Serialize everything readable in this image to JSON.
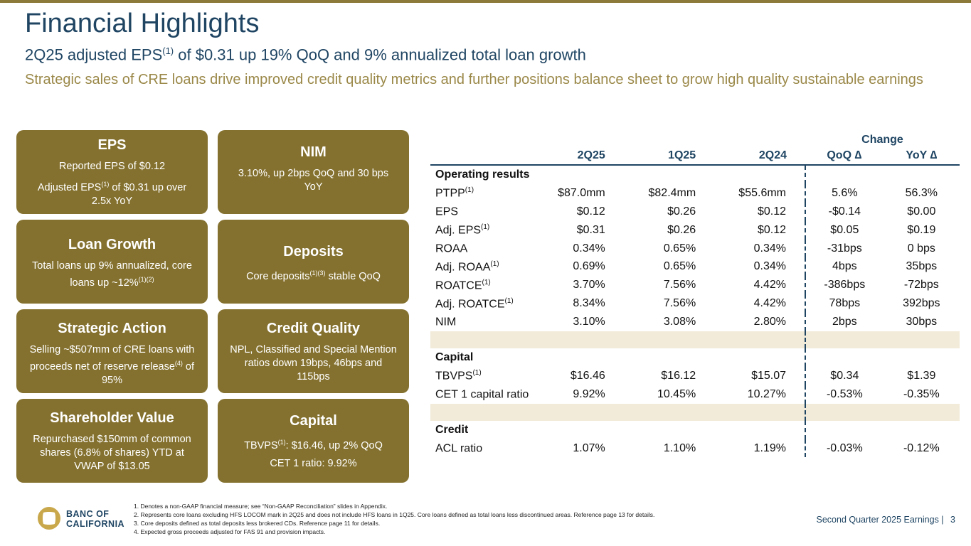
{
  "title": "Financial Highlights",
  "subtitle": {
    "text": "2Q25 adjusted EPS",
    "sup": "(1)",
    "text_after": " of $0.31 up 19% QoQ and 9% annualized total loan growth"
  },
  "subtitle2": "Strategic sales of CRE loans drive improved credit quality metrics and further positions balance sheet to grow high quality sustainable earnings",
  "tiles": {
    "eps": {
      "heading": "EPS",
      "line1": "Reported EPS of $0.12",
      "line2_a": "Adjusted EPS",
      "line2_sup": "(1)",
      "line2_b": " of $0.31 up over 2.5x YoY"
    },
    "nim": {
      "heading": "NIM",
      "line1": "3.10%, up 2bps QoQ and 30 bps YoY"
    },
    "loan_growth": {
      "heading": "Loan Growth",
      "line1": "Total loans up 9% annualized, core loans up ~12%",
      "line1_sup": "(1)(2)"
    },
    "deposits": {
      "heading": "Deposits",
      "line1_a": "Core deposits",
      "line1_sup": "(1)(3)",
      "line1_b": " stable QoQ"
    },
    "strategic_action": {
      "heading": "Strategic Action",
      "line1_a": "Selling ~$507mm of CRE loans with proceeds net of reserve release",
      "line1_sup": "(4)",
      "line1_b": " of 95%"
    },
    "credit_quality": {
      "heading": "Credit Quality",
      "line1": "NPL, Classified and Special Mention ratios down 19bps, 46bps and 115bps"
    },
    "shareholder_value": {
      "heading": "Shareholder Value",
      "line1": "Repurchased $150mm of common shares (6.8% of shares) YTD at VWAP of $13.05"
    },
    "capital": {
      "heading": "Capital",
      "line1_a": "TBVPS",
      "line1_sup": "(1)",
      "line1_b": ": $16.46, up 2% QoQ",
      "line2": "CET 1 ratio: 9.92%"
    }
  },
  "table": {
    "change_label": "Change",
    "columns": [
      "2Q25",
      "1Q25",
      "2Q24",
      "QoQ",
      "YoY"
    ],
    "delta_symbol": "∆",
    "sections": {
      "operating": "Operating results",
      "capital": "Capital",
      "credit": "Credit"
    },
    "rows": [
      {
        "label": "PTPP",
        "sup": "(1)",
        "values": [
          "$87.0mm",
          "$82.4mm",
          "$55.6mm",
          "5.6%",
          "56.3%"
        ]
      },
      {
        "label": "EPS",
        "sup": "",
        "values": [
          "$0.12",
          "$0.26",
          "$0.12",
          "-$0.14",
          "$0.00"
        ]
      },
      {
        "label": "Adj. EPS",
        "sup": "(1)",
        "values": [
          "$0.31",
          "$0.26",
          "$0.12",
          "$0.05",
          "$0.19"
        ]
      },
      {
        "label": "ROAA",
        "sup": "",
        "values": [
          "0.34%",
          "0.65%",
          "0.34%",
          "-31bps",
          "0 bps"
        ]
      },
      {
        "label": "Adj. ROAA",
        "sup": "(1)",
        "values": [
          "0.69%",
          "0.65%",
          "0.34%",
          "4bps",
          "35bps"
        ]
      },
      {
        "label": "ROATCE",
        "sup": "(1)",
        "values": [
          "3.70%",
          "7.56%",
          "4.42%",
          "-386bps",
          "-72bps"
        ]
      },
      {
        "label": "Adj. ROATCE",
        "sup": "(1)",
        "values": [
          "8.34%",
          "7.56%",
          "4.42%",
          "78bps",
          "392bps"
        ]
      },
      {
        "label": "NIM",
        "sup": "",
        "values": [
          "3.10%",
          "3.08%",
          "2.80%",
          "2bps",
          "30bps"
        ]
      },
      {
        "label": "TBVPS",
        "sup": "(1)",
        "values": [
          "$16.46",
          "$16.12",
          "$15.07",
          "$0.34",
          "$1.39"
        ]
      },
      {
        "label": "CET 1 capital ratio",
        "sup": "",
        "values": [
          "9.92%",
          "10.45%",
          "10.27%",
          "-0.53%",
          "-0.35%"
        ]
      },
      {
        "label": "ACL ratio",
        "sup": "",
        "values": [
          "1.07%",
          "1.10%",
          "1.19%",
          "-0.03%",
          "-0.12%"
        ]
      }
    ]
  },
  "footer": {
    "brand_line1": "BANC OF",
    "brand_line2": "CALIFORNIA",
    "notes": [
      "1.  Denotes a non-GAAP financial measure; see “Non-GAAP Reconciliation” slides in Appendix.",
      "2.  Represents core loans excluding HFS LOCOM mark in 2Q25 and does not include HFS loans in 1Q25. Core loans defined as total loans less discontinued areas. Reference page 13 for details.",
      "3.  Core deposits defined as total deposits less brokered CDs. Reference page 11 for details.",
      "4.  Expected gross proceeds adjusted for FAS 91 and provision impacts."
    ],
    "page_label": "Second Quarter 2025 Earnings |",
    "page_number": "3"
  },
  "colors": {
    "navy": "#1f4563",
    "gold_tile": "#84712f",
    "gold_text": "#9a8848",
    "band": "#f2ebd9"
  }
}
